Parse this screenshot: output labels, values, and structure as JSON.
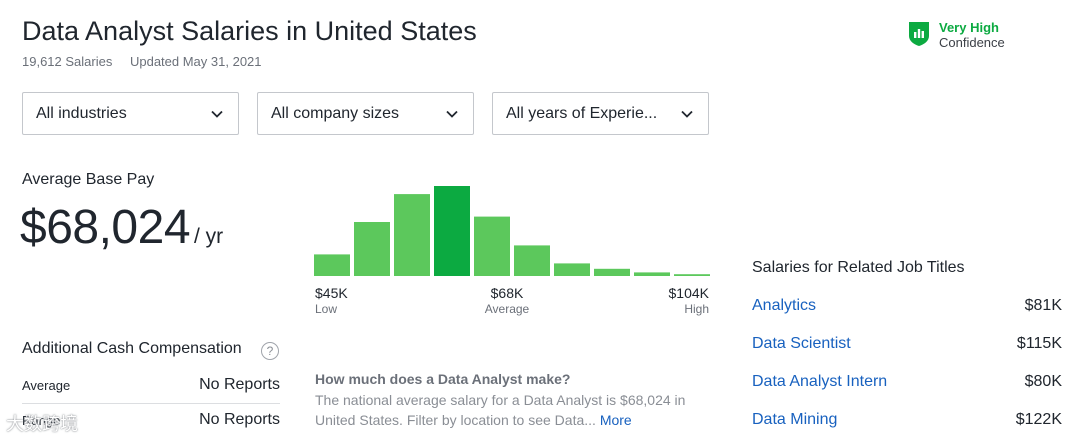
{
  "header": {
    "title": "Data Analyst Salaries in United States",
    "salary_count": "19,612 Salaries",
    "updated": "Updated May 31, 2021",
    "confidence_level": "Very High",
    "confidence_label": "Confidence"
  },
  "filters": [
    {
      "label": "All industries"
    },
    {
      "label": "All company sizes"
    },
    {
      "label": "All years of Experie..."
    }
  ],
  "base_pay": {
    "label": "Average Base Pay",
    "amount": "$68,024",
    "unit": "/ yr"
  },
  "histogram": {
    "low_value": "$45K",
    "low_label": "Low",
    "avg_value": "$68K",
    "avg_label": "Average",
    "high_value": "$104K",
    "high_label": "High",
    "relative_heights": [
      0.24,
      0.6,
      0.91,
      1.0,
      0.66,
      0.34,
      0.14,
      0.08,
      0.04,
      0.02
    ],
    "highlight_index": 3,
    "bar_color": "#5cc85c",
    "highlight_color": "#0caa41"
  },
  "cash": {
    "title": "Additional Cash Compensation",
    "help": "?",
    "rows": [
      {
        "label": "Average",
        "value": "No Reports"
      },
      {
        "label": "Range",
        "value": "No Reports"
      }
    ]
  },
  "faq": {
    "question": "How much does a Data Analyst make?",
    "answer": "The national average salary for a Data Analyst is $68,024 in United States. Filter by location to see Data...",
    "more": "More"
  },
  "related": {
    "title": "Salaries for Related Job Titles",
    "items": [
      {
        "name": "Analytics",
        "value": "$81K"
      },
      {
        "name": "Data Scientist",
        "value": "$115K"
      },
      {
        "name": "Data Analyst Intern",
        "value": "$80K"
      },
      {
        "name": "Data Mining",
        "value": "$122K"
      }
    ]
  },
  "watermark": "大数跨境",
  "colors": {
    "accent_green": "#0caa41",
    "link_blue": "#1861bf"
  }
}
